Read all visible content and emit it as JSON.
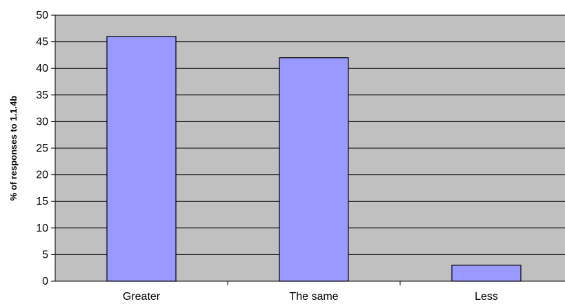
{
  "chart_data": {
    "type": "bar",
    "categories": [
      "Greater",
      "The same",
      "Less"
    ],
    "values": [
      46,
      42,
      3
    ],
    "title": "",
    "xlabel": "",
    "ylabel": "% of responses to 1.1.4b",
    "ylim": [
      0,
      50
    ],
    "yticks": [
      0,
      5,
      10,
      15,
      20,
      25,
      30,
      35,
      40,
      45,
      50
    ],
    "grid": true,
    "legend": "none",
    "colors": {
      "plot_background": "#c0c0c0",
      "bar_fill": "#9999ff",
      "bar_stroke": "#000000",
      "gridline": "#000000"
    }
  }
}
